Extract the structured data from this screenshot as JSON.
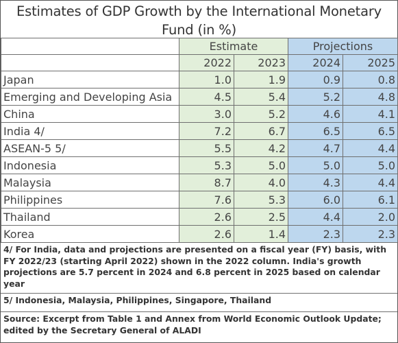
{
  "title": "Estimates of GDP Growth by the International Monetary Fund (in %)",
  "header": {
    "estimate_label": "Estimate",
    "projections_label": "Projections",
    "years": [
      "2022",
      "2023",
      "2024",
      "2025"
    ]
  },
  "rows": [
    {
      "name": "Japan",
      "values": [
        "1.0",
        "1.9",
        "0.9",
        "0.8"
      ]
    },
    {
      "name": "Emerging and Developing Asia",
      "values": [
        "4.5",
        "5.4",
        "5.2",
        "4.8"
      ]
    },
    {
      "name": "China",
      "values": [
        "3.0",
        "5.2",
        "4.6",
        "4.1"
      ]
    },
    {
      "name": "India 4/",
      "values": [
        "7.2",
        "6.7",
        "6.5",
        "6.5"
      ]
    },
    {
      "name": "ASEAN-5 5/",
      "values": [
        "5.5",
        "4.2",
        "4.7",
        "4.4"
      ]
    },
    {
      "name": "Indonesia",
      "values": [
        "5.3",
        "5.0",
        "5.0",
        "5.0"
      ]
    },
    {
      "name": "Malaysia",
      "values": [
        "8.7",
        "4.0",
        "4.3",
        "4.4"
      ]
    },
    {
      "name": "Philippines",
      "values": [
        "7.6",
        "5.3",
        "6.0",
        "6.1"
      ]
    },
    {
      "name": "Thailand",
      "values": [
        "2.6",
        "2.5",
        "4.4",
        "2.0"
      ]
    },
    {
      "name": "Korea",
      "values": [
        "2.6",
        "1.4",
        "2.3",
        "2.3"
      ]
    }
  ],
  "notes": {
    "note4": "4/ For India, data and projections are presented on a fiscal year (FY) basis, with FY 2022/23 (starting April 2022) shown in the 2022 column. India's growth projections are 5.7 percent in 2024 and 6.8 percent in 2025 based on calendar year",
    "note5": "5/ Indonesia, Malaysia, Philippines, Singapore, Thailand",
    "source": "Source: Excerpt from Table 1 and Annex from World Economic Outlook Update; edited by the Secretary General of ALADI"
  },
  "colors": {
    "estimate_fill": "#e2efda",
    "projection_fill": "#bdd7ee",
    "border": "#6f6f6f"
  }
}
